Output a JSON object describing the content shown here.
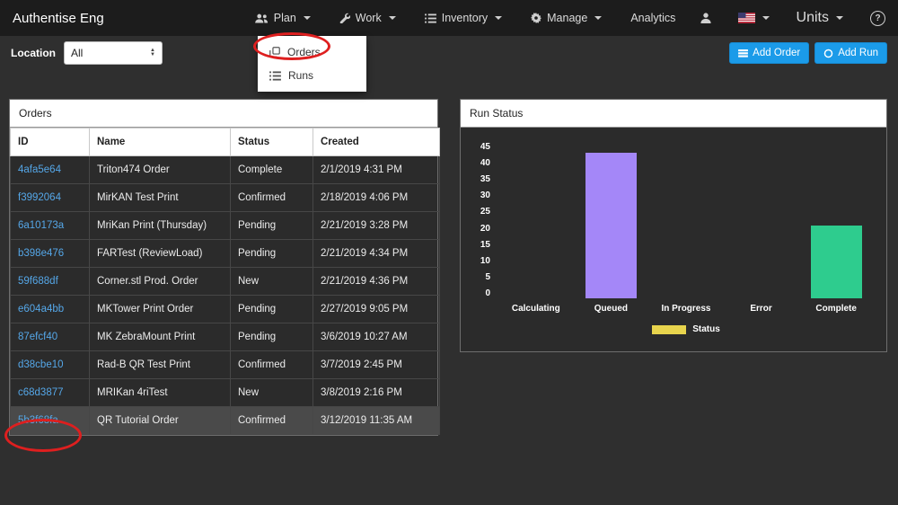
{
  "navbar": {
    "brand": "Authentise Eng",
    "items": [
      {
        "label": "Plan",
        "icon": "users-icon"
      },
      {
        "label": "Work",
        "icon": "wrench-icon"
      },
      {
        "label": "Inventory",
        "icon": "list-icon"
      },
      {
        "label": "Manage",
        "icon": "gear-icon"
      },
      {
        "label": "Analytics",
        "icon": null
      }
    ],
    "units_label": "Units",
    "help_label": "?"
  },
  "plan_menu": {
    "items": [
      {
        "label": "Orders",
        "icon": "clone-icon"
      },
      {
        "label": "Runs",
        "icon": "list-icon"
      }
    ]
  },
  "toolbar": {
    "location_label": "Location",
    "location_value": "All",
    "add_order_label": "Add Order",
    "add_run_label": "Add Run"
  },
  "orders_panel": {
    "title": "Orders",
    "columns": [
      "ID",
      "Name",
      "Status",
      "Created"
    ],
    "rows": [
      [
        "4afa5e64",
        "Triton474 Order",
        "Complete",
        "2/1/2019 4:31 PM"
      ],
      [
        "f3992064",
        "MirKAN Test Print",
        "Confirmed",
        "2/18/2019 4:06 PM"
      ],
      [
        "6a10173a",
        "MriKan Print (Thursday)",
        "Pending",
        "2/21/2019 3:28 PM"
      ],
      [
        "b398e476",
        "FARTest (ReviewLoad)",
        "Pending",
        "2/21/2019 4:34 PM"
      ],
      [
        "59f688df",
        "Corner.stl Prod. Order",
        "New",
        "2/21/2019 4:36 PM"
      ],
      [
        "e604a4bb",
        "MKTower Print Order",
        "Pending",
        "2/27/2019 9:05 PM"
      ],
      [
        "87efcf40",
        "MK ZebraMount Print",
        "Pending",
        "3/6/2019 10:27 AM"
      ],
      [
        "d38cbe10",
        "Rad-B QR Test Print",
        "Confirmed",
        "3/7/2019 2:45 PM"
      ],
      [
        "c68d3877",
        "MRIKan 4riTest",
        "New",
        "3/8/2019 2:16 PM"
      ],
      [
        "5b3f68fa",
        "QR Tutorial Order",
        "Confirmed",
        "3/12/2019 11:35 AM"
      ]
    ]
  },
  "chart_data": {
    "type": "bar",
    "title": "Run Status",
    "categories": [
      "Calculating",
      "Queued",
      "In Progress",
      "Error",
      "Complete"
    ],
    "values": [
      0,
      42,
      0,
      0,
      21
    ],
    "colors": [
      "#e8d44d",
      "#a487f8",
      "#e8d44d",
      "#e8d44d",
      "#2ecc8e"
    ],
    "ylim": [
      0,
      45
    ],
    "yticks": [
      "45",
      "40",
      "35",
      "30",
      "25",
      "20",
      "15",
      "10",
      "5",
      "0"
    ],
    "legend": [
      {
        "label": "Status",
        "color": "#e8d44d"
      }
    ],
    "grid": false,
    "legend_position": "bottom"
  },
  "annotation_color": "#de1f1f"
}
